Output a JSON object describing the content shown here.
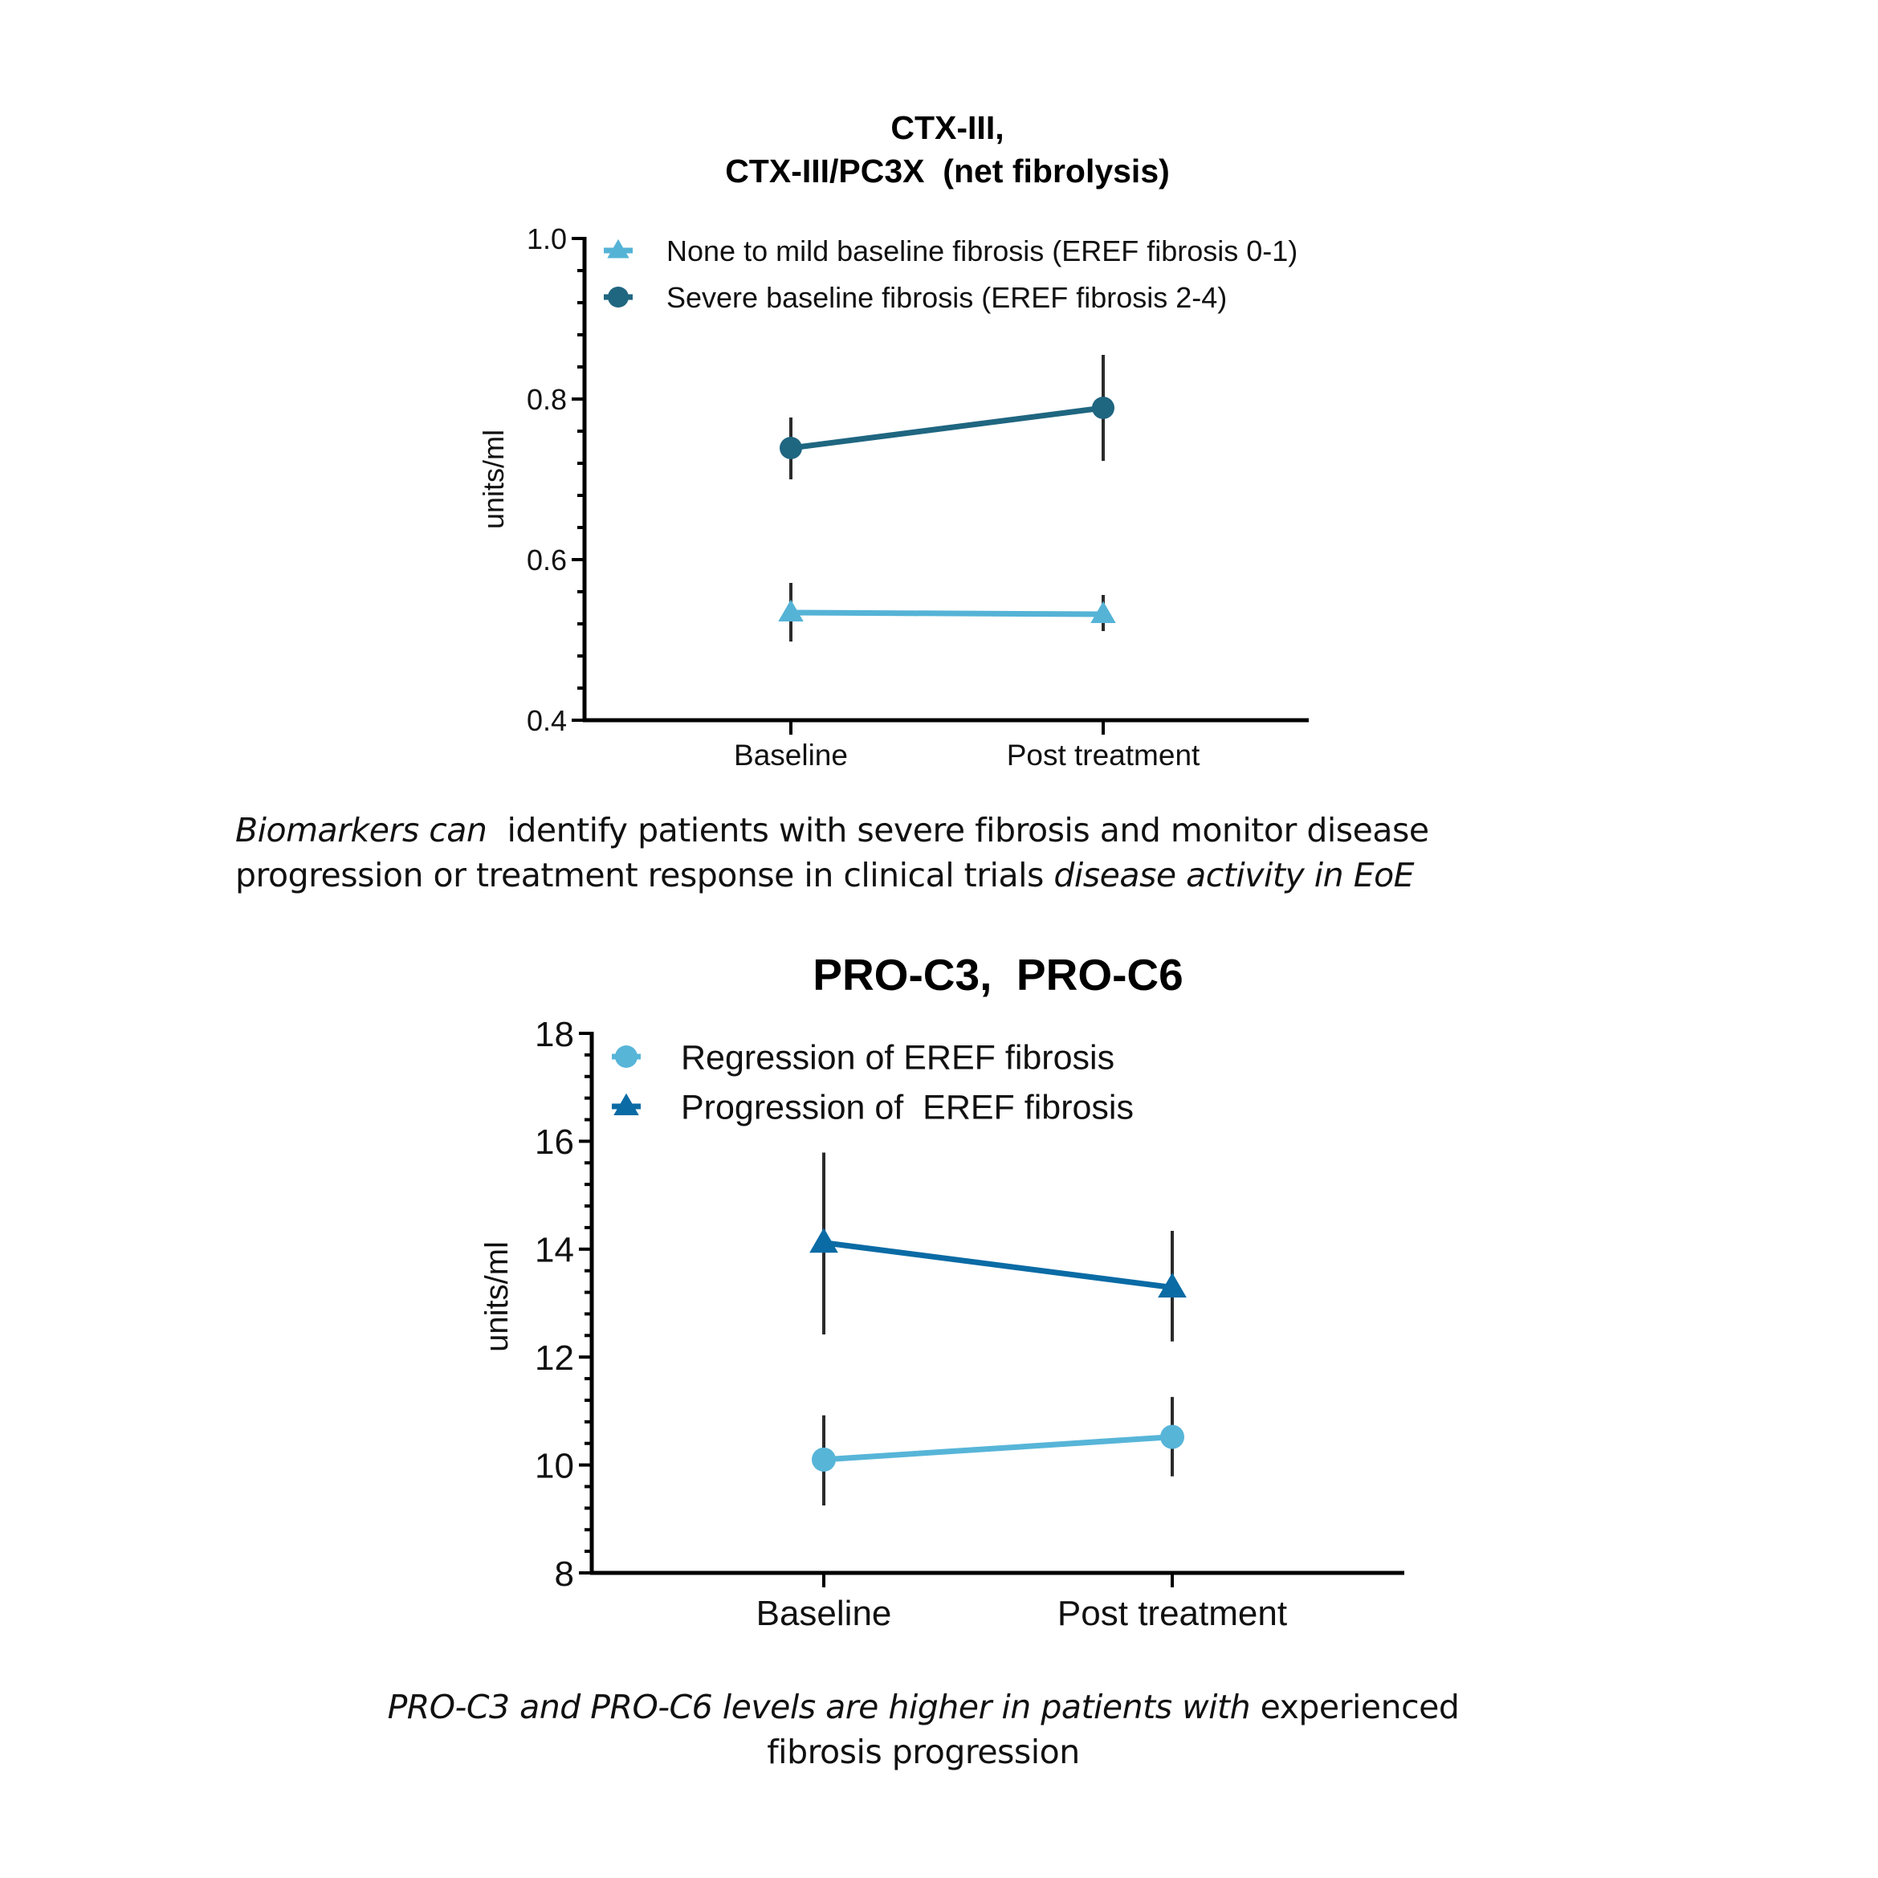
{
  "chart_data": [
    {
      "type": "line",
      "title": "CTX-III,\nCTX-III/PC3X  (net fibrolysis)",
      "title_lines": [
        "CTX-III,",
        "CTX-III/PC3X  (net fibrolysis)"
      ],
      "xlabel": "",
      "ylabel": "units/ml",
      "categories": [
        "Baseline",
        "Post treatment"
      ],
      "ylim": [
        0.4,
        1.0
      ],
      "yticks": [
        0.4,
        0.6,
        0.8,
        1.0
      ],
      "ytick_labels": [
        "0.4",
        "0.6",
        "0.8",
        "1.0"
      ],
      "minor_ticks_per_major": 4,
      "grid": false,
      "legend_position": "top-left",
      "series": [
        {
          "name": "None to mild baseline fibrosis (EREF fibrosis 0-1)",
          "marker": "triangle",
          "color": "#55B3D6",
          "values": [
            0.534,
            0.532
          ],
          "error_low": [
            0.498,
            0.511
          ],
          "error_high": [
            0.571,
            0.556
          ]
        },
        {
          "name": "Severe baseline fibrosis (EREF fibrosis 2-4)",
          "marker": "circle",
          "color": "#1F6680",
          "values": [
            0.739,
            0.789
          ],
          "error_low": [
            0.7,
            0.723
          ],
          "error_high": [
            0.777,
            0.855
          ]
        }
      ]
    },
    {
      "type": "line",
      "title": "PRO-C3,  PRO-C6",
      "title_lines": [
        "PRO-C3,  PRO-C6"
      ],
      "xlabel": "",
      "ylabel": "units/ml",
      "categories": [
        "Baseline",
        "Post treatment"
      ],
      "ylim": [
        8,
        18
      ],
      "yticks": [
        8,
        10,
        12,
        14,
        16,
        18
      ],
      "ytick_labels": [
        "8",
        "10",
        "12",
        "14",
        "16",
        "18"
      ],
      "minor_ticks_per_major": 4,
      "grid": false,
      "legend_position": "top-left",
      "series": [
        {
          "name": "Regression of EREF fibrosis",
          "marker": "circle",
          "color": "#57B5D8",
          "values": [
            10.1,
            10.52
          ],
          "error_low": [
            9.25,
            9.79
          ],
          "error_high": [
            10.92,
            11.26
          ]
        },
        {
          "name": "Progression of  EREF fibrosis",
          "marker": "triangle",
          "color": "#0A6BA5",
          "values": [
            14.12,
            13.29
          ],
          "error_low": [
            12.42,
            12.29
          ],
          "error_high": [
            15.79,
            14.34
          ]
        }
      ]
    }
  ],
  "captions": {
    "top": {
      "line1_italic": "Biomarkers can",
      "line1_regular": "  identify patients with severe fibrosis and monitor disease",
      "line2_regular": "progression or treatment response in clinical trials ",
      "line2_italic": "disease activity in EoE"
    },
    "bottom": {
      "italic": "PRO-C3 and PRO-C6 levels are higher in patients with",
      "regular": " experienced",
      "line2": "fibrosis progression"
    }
  },
  "colors": {
    "axis": "#000000",
    "error_bar": "#2b2b2b"
  }
}
